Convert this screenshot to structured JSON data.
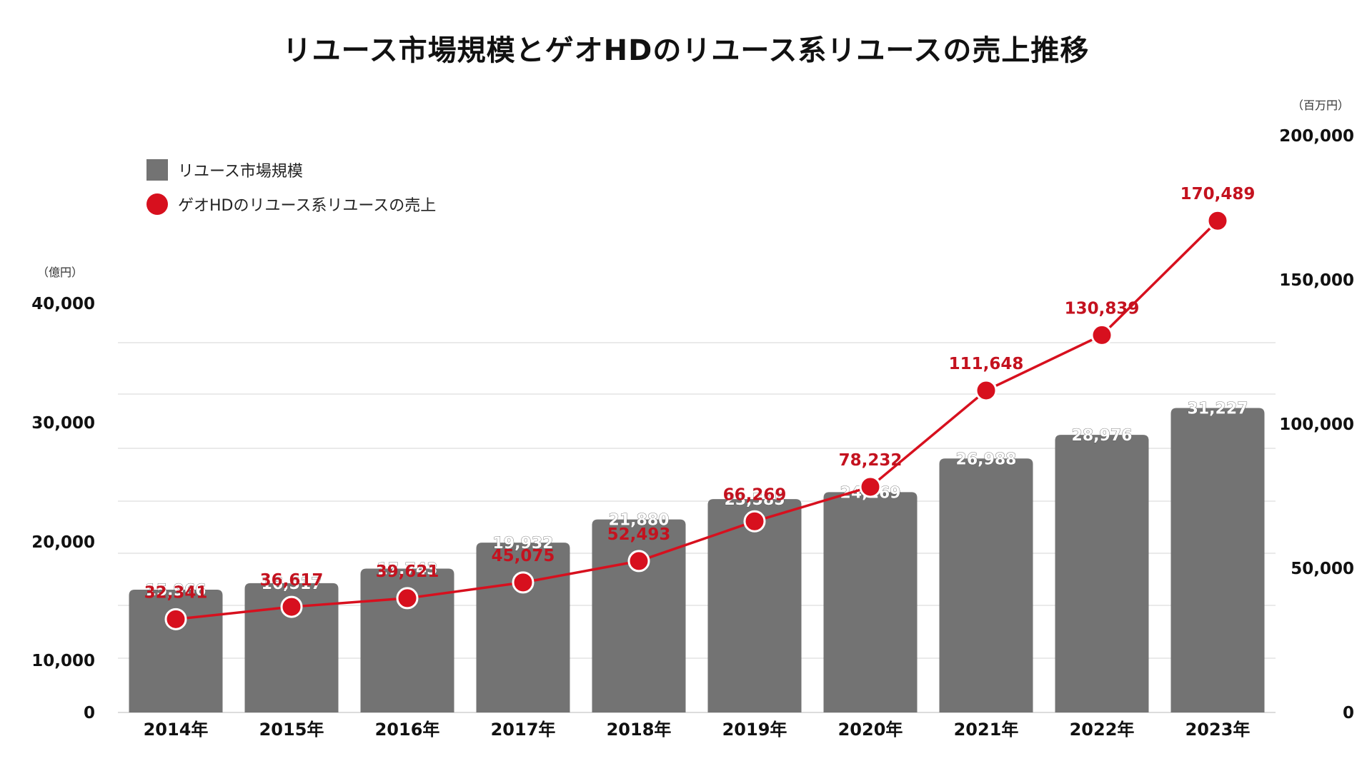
{
  "chart_data": {
    "type": "bar+line",
    "title": "リユース市場規模とゲオHDのリユース系リユースの売上推移",
    "categories": [
      "2014年",
      "2015年",
      "2016年",
      "2017年",
      "2018年",
      "2019年",
      "2020年",
      "2021年",
      "2022年",
      "2023年"
    ],
    "series": [
      {
        "name": "リユース市場規模",
        "type": "bar",
        "axis": "left",
        "color": "#737373",
        "values": [
          15966,
          16517,
          17743,
          19932,
          21880,
          23585,
          24169,
          26988,
          28976,
          31227
        ],
        "labels": [
          "15,966",
          "16,517",
          "17,743",
          "19,932",
          "21,880",
          "23,585",
          "24,169",
          "26,988",
          "28,976",
          "31,227"
        ]
      },
      {
        "name": "ゲオHDのリユース系リユースの売上",
        "type": "line",
        "axis": "right",
        "color": "#d7101e",
        "values": [
          32341,
          36617,
          39621,
          45075,
          52493,
          66269,
          78232,
          111648,
          130839,
          170489
        ],
        "labels": [
          "32,341",
          "36,617",
          "39,621",
          "45,075",
          "52,493",
          "66,269",
          "78,232",
          "111,648",
          "130,839",
          "170,489"
        ]
      }
    ],
    "left_axis": {
      "unit": "（億円）",
      "ticks": [
        0,
        10000,
        20000,
        30000,
        40000
      ],
      "tick_labels": [
        "0",
        "10,000",
        "20,000",
        "30,000",
        "40,000"
      ],
      "ylim": [
        0,
        40000
      ]
    },
    "right_axis": {
      "unit": "（百万円）",
      "ticks": [
        0,
        50000,
        100000,
        150000,
        200000
      ],
      "tick_labels": [
        "0",
        "50,000",
        "100,000",
        "150,000",
        "200,000"
      ],
      "ylim": [
        0,
        200000
      ]
    },
    "legend_position": "top-left",
    "grid": true
  }
}
